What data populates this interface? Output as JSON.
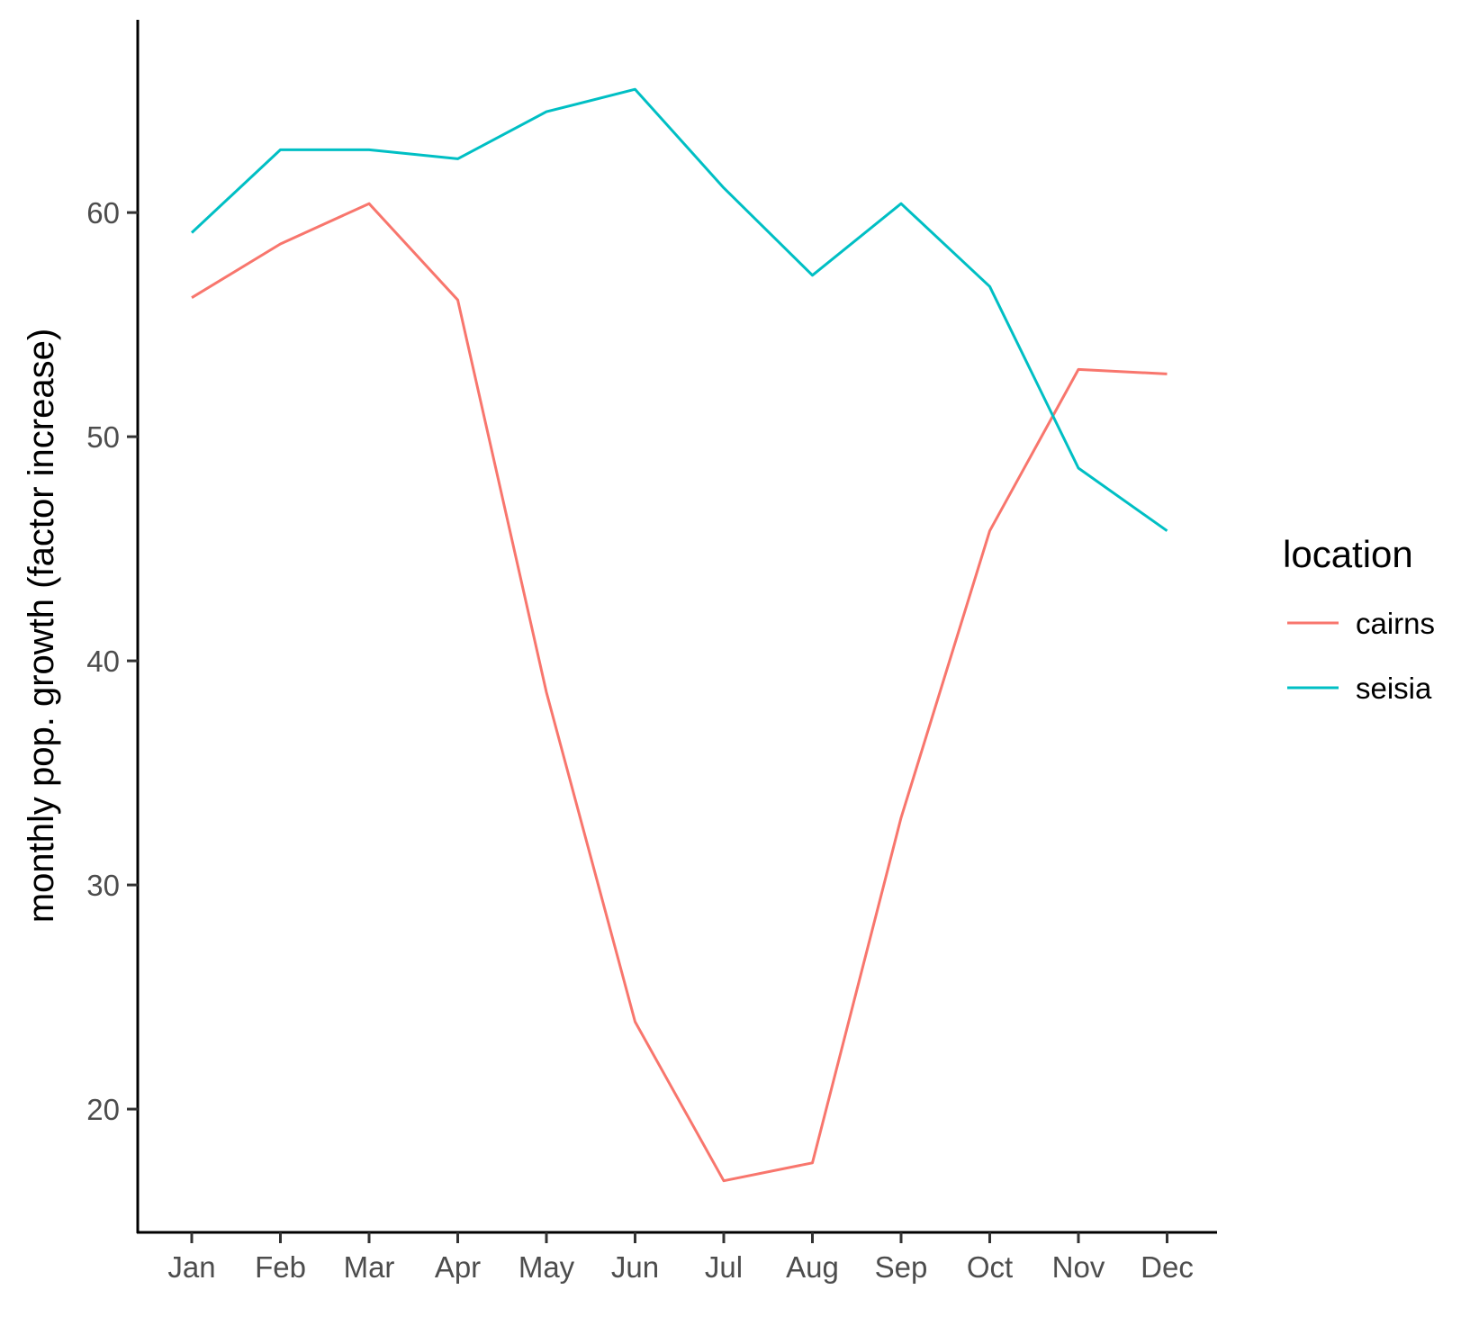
{
  "chart_data": {
    "type": "line",
    "title": "",
    "xlabel": "",
    "ylabel": "monthly pop. growth (factor increase)",
    "categories": [
      "Jan",
      "Feb",
      "Mar",
      "Apr",
      "May",
      "Jun",
      "Jul",
      "Aug",
      "Sep",
      "Oct",
      "Nov",
      "Dec"
    ],
    "y_ticks": [
      20,
      30,
      40,
      50,
      60
    ],
    "ylim": [
      14.5,
      68.6
    ],
    "grid": false,
    "legend": {
      "title": "location",
      "placement": "right"
    },
    "series": [
      {
        "name": "cairns",
        "color": "#F8766D",
        "values": [
          56.2,
          58.6,
          60.4,
          56.1,
          38.6,
          23.9,
          16.8,
          17.6,
          33.0,
          45.8,
          53.0,
          52.8
        ]
      },
      {
        "name": "seisia",
        "color": "#00BFC4",
        "values": [
          59.1,
          62.8,
          62.8,
          62.4,
          64.5,
          65.5,
          61.1,
          57.2,
          60.4,
          56.7,
          48.6,
          45.8
        ]
      }
    ]
  }
}
